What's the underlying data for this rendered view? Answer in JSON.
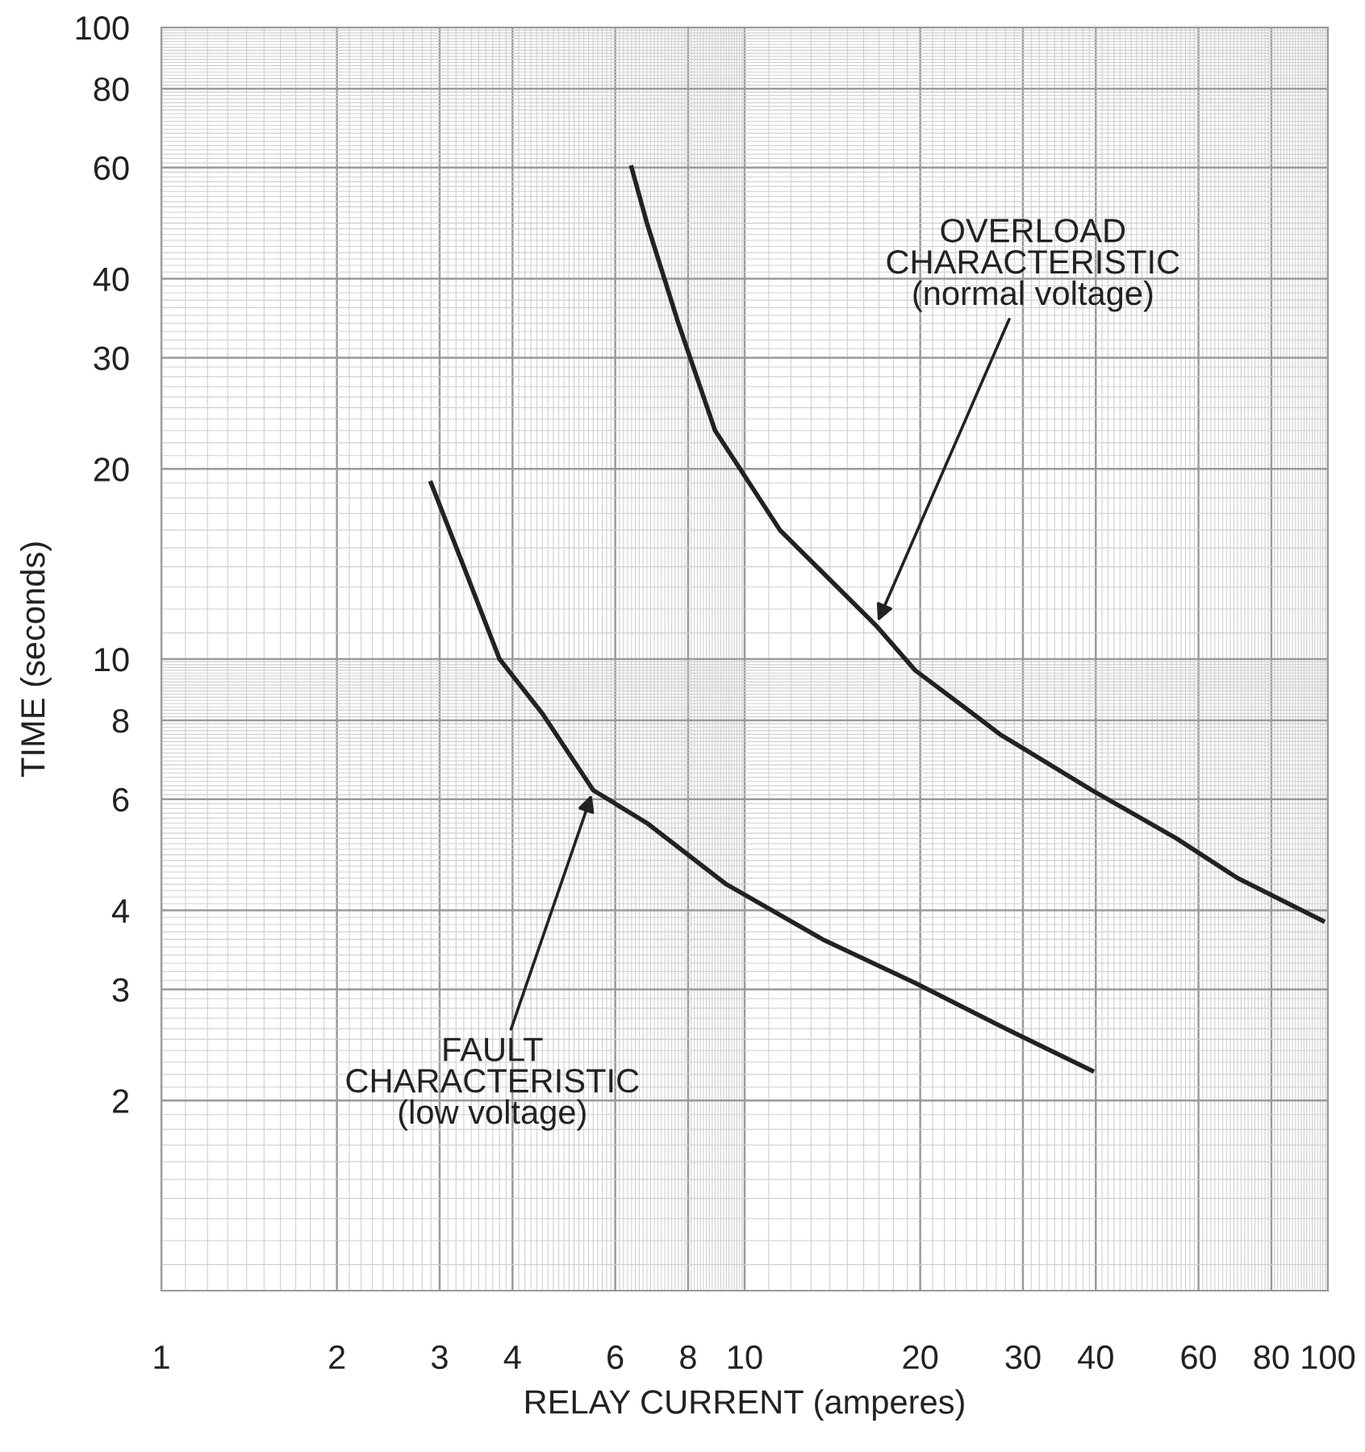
{
  "chart_data": {
    "type": "line",
    "xlabel": "RELAY CURRENT (amperes)",
    "ylabel": "TIME (seconds)",
    "log": "xy",
    "xlim": [
      1,
      100
    ],
    "ylim": [
      1,
      100
    ],
    "xticks": [
      1,
      2,
      3,
      4,
      6,
      8,
      10,
      20,
      30,
      40,
      60,
      80,
      100
    ],
    "yticks": [
      2,
      3,
      4,
      6,
      8,
      10,
      20,
      30,
      40,
      60,
      80,
      100
    ],
    "grid": true,
    "line_style": "solid",
    "marker": "none",
    "series": [
      {
        "color": "#222222",
        "x": [
          2.9,
          3.3,
          3.8,
          4.5,
          5.5,
          6.8,
          9.3,
          13.6,
          19.6,
          28,
          39.4
        ],
        "values": [
          19,
          14,
          10,
          8.2,
          6.2,
          5.5,
          4.4,
          3.6,
          3.07,
          2.6,
          2.23
        ]
      },
      {
        "color": "#222222",
        "x": [
          6.4,
          6.8,
          7.7,
          8.9,
          11.5,
          16.8,
          19.6,
          24.6,
          27.4,
          39.4,
          55,
          70,
          98
        ],
        "values": [
          60,
          49,
          34,
          23,
          16,
          11.3,
          9.6,
          8.2,
          7.6,
          6.2,
          5.2,
          4.5,
          3.85
        ]
      }
    ],
    "annotations": [
      {
        "text": "OVERLOAD\nCHARACTERISTIC\n(normal voltage)",
        "x": 16.8,
        "y": 11.3
      },
      {
        "text": "FAULT\nCHARACTERISTIC\n(low voltage)",
        "x": 5.5,
        "y": 6.2
      }
    ]
  }
}
